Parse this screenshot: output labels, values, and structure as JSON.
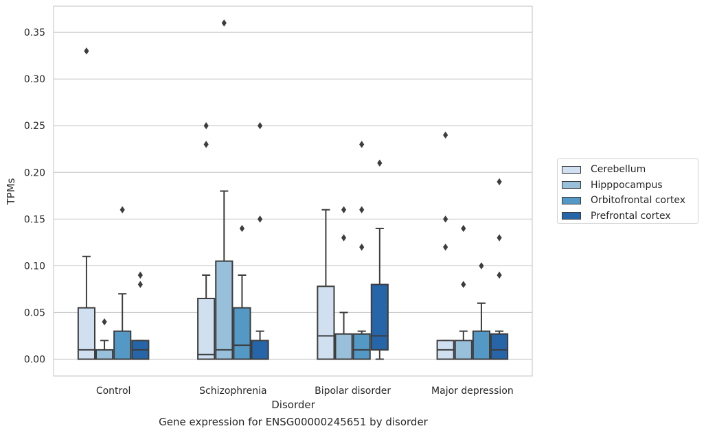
{
  "chart_data": {
    "type": "box",
    "caption": "Gene expression for ENSG00000245651 by disorder",
    "xlabel": "Disorder",
    "ylabel": "TPMs",
    "ylim": [
      -0.018,
      0.378
    ],
    "yticks": [
      0.0,
      0.05,
      0.1,
      0.15,
      0.2,
      0.25,
      0.3,
      0.35
    ],
    "ytick_labels": [
      "0.00",
      "0.05",
      "0.10",
      "0.15",
      "0.20",
      "0.25",
      "0.30",
      "0.35"
    ],
    "grid": "horizontal",
    "legend_position": "right",
    "categories": [
      "Control",
      "Schizophrenia",
      "Bipolar disorder",
      "Major depression"
    ],
    "series": [
      {
        "name": "Cerebellum",
        "color": "#d0e0f0",
        "boxes": [
          {
            "q1": 0.0,
            "median": 0.01,
            "q3": 0.055,
            "whisker_low": 0.0,
            "whisker_high": 0.11,
            "outliers": [
              0.33
            ]
          },
          {
            "q1": 0.0,
            "median": 0.005,
            "q3": 0.065,
            "whisker_low": 0.0,
            "whisker_high": 0.09,
            "outliers": [
              0.23,
              0.25
            ]
          },
          {
            "q1": 0.0,
            "median": 0.025,
            "q3": 0.078,
            "whisker_low": 0.0,
            "whisker_high": 0.16,
            "outliers": []
          },
          {
            "q1": 0.0,
            "median": 0.01,
            "q3": 0.02,
            "whisker_low": 0.0,
            "whisker_high": 0.02,
            "outliers": [
              0.12,
              0.15,
              0.24
            ]
          }
        ]
      },
      {
        "name": "Hipppocampus",
        "color": "#98c0db",
        "boxes": [
          {
            "q1": 0.0,
            "median": 0.0,
            "q3": 0.01,
            "whisker_low": 0.0,
            "whisker_high": 0.02,
            "outliers": [
              0.04
            ]
          },
          {
            "q1": 0.0,
            "median": 0.01,
            "q3": 0.105,
            "whisker_low": 0.0,
            "whisker_high": 0.18,
            "outliers": [
              0.36
            ]
          },
          {
            "q1": 0.0,
            "median": 0.0,
            "q3": 0.027,
            "whisker_low": 0.0,
            "whisker_high": 0.05,
            "outliers": [
              0.13,
              0.16
            ]
          },
          {
            "q1": 0.0,
            "median": 0.0,
            "q3": 0.02,
            "whisker_low": 0.0,
            "whisker_high": 0.03,
            "outliers": [
              0.08,
              0.14
            ]
          }
        ]
      },
      {
        "name": "Orbitofrontal cortex",
        "color": "#5498c6",
        "boxes": [
          {
            "q1": 0.0,
            "median": 0.0,
            "q3": 0.03,
            "whisker_low": 0.0,
            "whisker_high": 0.07,
            "outliers": [
              0.16
            ]
          },
          {
            "q1": 0.0,
            "median": 0.015,
            "q3": 0.055,
            "whisker_low": 0.0,
            "whisker_high": 0.09,
            "outliers": [
              0.14
            ]
          },
          {
            "q1": 0.0,
            "median": 0.01,
            "q3": 0.027,
            "whisker_low": 0.0,
            "whisker_high": 0.03,
            "outliers": [
              0.12,
              0.16,
              0.23
            ]
          },
          {
            "q1": 0.0,
            "median": 0.0,
            "q3": 0.03,
            "whisker_low": 0.0,
            "whisker_high": 0.06,
            "outliers": [
              0.1
            ]
          }
        ]
      },
      {
        "name": "Prefrontal cortex",
        "color": "#2565a8",
        "boxes": [
          {
            "q1": 0.0,
            "median": 0.01,
            "q3": 0.02,
            "whisker_low": 0.0,
            "whisker_high": 0.02,
            "outliers": [
              0.08,
              0.09
            ]
          },
          {
            "q1": 0.0,
            "median": 0.0,
            "q3": 0.02,
            "whisker_low": 0.0,
            "whisker_high": 0.03,
            "outliers": [
              0.15,
              0.25
            ]
          },
          {
            "q1": 0.01,
            "median": 0.025,
            "q3": 0.08,
            "whisker_low": 0.0,
            "whisker_high": 0.14,
            "outliers": [
              0.21
            ]
          },
          {
            "q1": 0.0,
            "median": 0.01,
            "q3": 0.027,
            "whisker_low": 0.0,
            "whisker_high": 0.03,
            "outliers": [
              0.09,
              0.13,
              0.19
            ]
          }
        ]
      }
    ]
  }
}
